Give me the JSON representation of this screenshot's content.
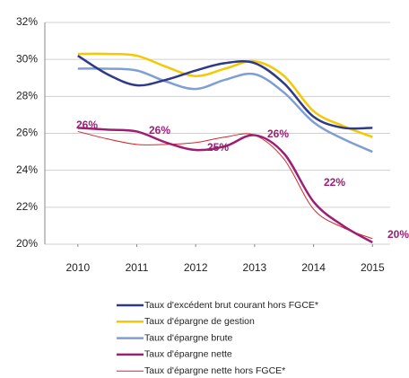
{
  "chart_data": {
    "type": "line",
    "x": [
      2010,
      2010.5,
      2011,
      2011.5,
      2012,
      2012.5,
      2013,
      2013.5,
      2014,
      2014.5,
      2015
    ],
    "xlim": [
      2009.44,
      2015.3
    ],
    "xticks": [
      2010,
      2011,
      2012,
      2013,
      2014,
      2015
    ],
    "ylim": [
      20,
      32
    ],
    "yticks": [
      {
        "value": 20,
        "label": "20%"
      },
      {
        "value": 22,
        "label": "22%"
      },
      {
        "value": 24,
        "label": "24%"
      },
      {
        "value": 26,
        "label": "26%"
      },
      {
        "value": 28,
        "label": "28%"
      },
      {
        "value": 30,
        "label": "30%"
      },
      {
        "value": 32,
        "label": "32%"
      }
    ],
    "grid": true,
    "legend": "bottom",
    "series": [
      {
        "name": "Taux d'excédent brut courant hors FGCE*",
        "color": "#2e3a87",
        "line_width": 2.5,
        "values": [
          30.2,
          29.2,
          28.6,
          28.9,
          29.4,
          29.8,
          29.8,
          28.7,
          26.9,
          26.3,
          26.3
        ]
      },
      {
        "name": "Taux d'épargne de gestion",
        "color": "#f5c800",
        "line_width": 2.5,
        "values": [
          30.3,
          30.3,
          30.2,
          29.6,
          29.1,
          29.5,
          29.9,
          29.1,
          27.2,
          26.4,
          25.8
        ]
      },
      {
        "name": "Taux d'épargne brute",
        "color": "#7f9fd4",
        "line_width": 2.5,
        "values": [
          29.5,
          29.5,
          29.4,
          28.8,
          28.4,
          28.9,
          29.2,
          28.2,
          26.6,
          25.7,
          25.0
        ]
      },
      {
        "name": "Taux d'épargne nette",
        "color": "#9c1f74",
        "line_width": 2.5,
        "values": [
          26.3,
          26.2,
          26.1,
          25.5,
          25.1,
          25.3,
          25.9,
          24.9,
          22.3,
          21.0,
          20.1
        ]
      },
      {
        "name": "Taux d'épargne nette hors FGCE*",
        "color": "#d6262b",
        "line_width": 1,
        "values": [
          26.1,
          25.7,
          25.4,
          25.4,
          25.5,
          25.8,
          25.9,
          24.6,
          21.9,
          20.9,
          20.3
        ]
      }
    ],
    "annotations": [
      "26%",
      "26%",
      "25%",
      "26%",
      "22%",
      "20%"
    ]
  }
}
